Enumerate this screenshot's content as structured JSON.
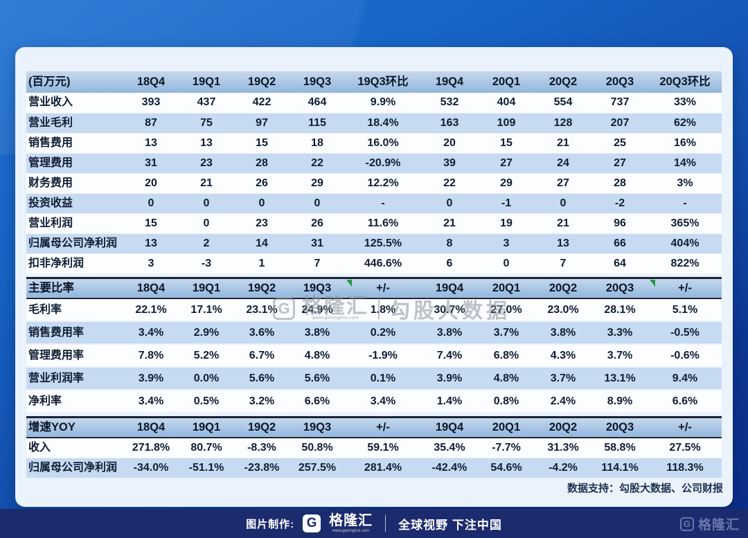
{
  "table": {
    "sections": [
      {
        "id": "income",
        "header": [
          "(百万元)",
          "18Q4",
          "19Q1",
          "19Q2",
          "19Q3",
          "19Q3环比",
          "19Q4",
          "20Q1",
          "20Q2",
          "20Q3",
          "20Q3环比"
        ],
        "marker_cols": [],
        "rows": [
          {
            "label": "营业收入",
            "values": [
              "393",
              "437",
              "422",
              "464",
              "9.9%",
              "532",
              "404",
              "554",
              "737",
              "33%"
            ]
          },
          {
            "label": "营业毛利",
            "values": [
              "87",
              "75",
              "97",
              "115",
              "18.4%",
              "163",
              "109",
              "128",
              "207",
              "62%"
            ]
          },
          {
            "label": "销售费用",
            "values": [
              "13",
              "13",
              "15",
              "18",
              "16.0%",
              "20",
              "15",
              "21",
              "25",
              "16%"
            ]
          },
          {
            "label": "管理费用",
            "values": [
              "31",
              "23",
              "28",
              "22",
              "-20.9%",
              "39",
              "27",
              "24",
              "27",
              "14%"
            ]
          },
          {
            "label": "财务费用",
            "values": [
              "20",
              "21",
              "26",
              "29",
              "12.2%",
              "22",
              "29",
              "27",
              "28",
              "3%"
            ]
          },
          {
            "label": "投资收益",
            "values": [
              "0",
              "0",
              "0",
              "0",
              "-",
              "0",
              "-1",
              "0",
              "-2",
              "-"
            ]
          },
          {
            "label": "营业利润",
            "values": [
              "15",
              "0",
              "23",
              "26",
              "11.6%",
              "21",
              "19",
              "21",
              "96",
              "365%"
            ]
          },
          {
            "label": "归属母公司净利润",
            "values": [
              "13",
              "2",
              "14",
              "31",
              "125.5%",
              "8",
              "3",
              "13",
              "66",
              "404%"
            ]
          },
          {
            "label": "扣非净利润",
            "values": [
              "3",
              "-3",
              "1",
              "7",
              "446.6%",
              "6",
              "0",
              "7",
              "64",
              "822%"
            ]
          }
        ]
      },
      {
        "id": "ratios",
        "header": [
          "主要比率",
          "18Q4",
          "19Q1",
          "19Q2",
          "19Q3",
          "+/-",
          "19Q4",
          "20Q1",
          "20Q2",
          "20Q3",
          "+/-"
        ],
        "marker_cols": [
          5,
          10
        ],
        "rows": [
          {
            "label": "毛利率",
            "values": [
              "22.1%",
              "17.1%",
              "23.1%",
              "24.9%",
              "1.8%",
              "30.7%",
              "27.0%",
              "23.0%",
              "28.1%",
              "5.1%"
            ]
          },
          {
            "label": "销售费用率",
            "values": [
              "3.4%",
              "2.9%",
              "3.6%",
              "3.8%",
              "0.2%",
              "3.8%",
              "3.7%",
              "3.8%",
              "3.3%",
              "-0.5%"
            ]
          },
          {
            "label": "管理费用率",
            "values": [
              "7.8%",
              "5.2%",
              "6.7%",
              "4.8%",
              "-1.9%",
              "7.4%",
              "6.8%",
              "4.3%",
              "3.7%",
              "-0.6%"
            ]
          },
          {
            "label": "营业利润率",
            "values": [
              "3.9%",
              "0.0%",
              "5.6%",
              "5.6%",
              "0.1%",
              "3.9%",
              "4.8%",
              "3.7%",
              "13.1%",
              "9.4%"
            ]
          },
          {
            "label": "净利率",
            "values": [
              "3.4%",
              "0.5%",
              "3.2%",
              "6.6%",
              "3.4%",
              "1.4%",
              "0.8%",
              "2.4%",
              "8.9%",
              "6.6%"
            ]
          }
        ]
      },
      {
        "id": "yoy",
        "header": [
          "增速YOY",
          "18Q4",
          "19Q1",
          "19Q2",
          "19Q3",
          "+/-",
          "19Q4",
          "20Q1",
          "20Q2",
          "20Q3",
          "+/-"
        ],
        "marker_cols": [],
        "rows": [
          {
            "label": "收入",
            "values": [
              "271.8%",
              "80.7%",
              "-8.3%",
              "50.8%",
              "59.1%",
              "35.4%",
              "-7.7%",
              "31.3%",
              "58.8%",
              "27.5%"
            ]
          },
          {
            "label": "归属母公司净利润",
            "values": [
              "-34.0%",
              "-51.1%",
              "-23.8%",
              "257.5%",
              "281.4%",
              "-42.4%",
              "54.6%",
              "-4.2%",
              "114.1%",
              "118.3%"
            ]
          }
        ]
      }
    ]
  },
  "footer_note": "数据支持：勾股大数据、公司财报",
  "watermark": {
    "logo_letter": "G",
    "brand": "格隆汇",
    "site": "www.gelonghui.com",
    "product": "勾股大数据"
  },
  "bottom_bar": {
    "label": "图片制作:",
    "logo_letter": "G",
    "brand": "格隆汇",
    "brand_site": "www.gelonghui.com",
    "slogan": "全球视野 下注中国"
  },
  "corner_watermark": {
    "logo_letter": "G",
    "brand": "格隆汇"
  },
  "colors": {
    "background_top": "#2173d4",
    "background_bottom": "#0b2d88",
    "bottom_bar": "#1c2b6e",
    "card": "#eaf2fb",
    "header_fill_top": "#c6d8ec",
    "header_fill_bottom": "#93b7de",
    "stripe_row": "#c6daf1",
    "white_row": "#fbfdff",
    "text": "#101d33",
    "section_border": "#1a2233",
    "comment_marker_green": "#1f9b3a"
  },
  "chart_data": {
    "type": "table",
    "title": "季度财务数据表 (百万元)",
    "columns": [
      "(百万元)",
      "18Q4",
      "19Q1",
      "19Q2",
      "19Q3",
      "19Q3环比",
      "19Q4",
      "20Q1",
      "20Q2",
      "20Q3",
      "20Q3环比"
    ],
    "sections": [
      {
        "name": "(百万元)",
        "rows": [
          [
            "营业收入",
            "393",
            "437",
            "422",
            "464",
            "9.9%",
            "532",
            "404",
            "554",
            "737",
            "33%"
          ],
          [
            "营业毛利",
            "87",
            "75",
            "97",
            "115",
            "18.4%",
            "163",
            "109",
            "128",
            "207",
            "62%"
          ],
          [
            "销售费用",
            "13",
            "13",
            "15",
            "18",
            "16.0%",
            "20",
            "15",
            "21",
            "25",
            "16%"
          ],
          [
            "管理费用",
            "31",
            "23",
            "28",
            "22",
            "-20.9%",
            "39",
            "27",
            "24",
            "27",
            "14%"
          ],
          [
            "财务费用",
            "20",
            "21",
            "26",
            "29",
            "12.2%",
            "22",
            "29",
            "27",
            "28",
            "3%"
          ],
          [
            "投资收益",
            "0",
            "0",
            "0",
            "0",
            "-",
            "0",
            "-1",
            "0",
            "-2",
            "-"
          ],
          [
            "营业利润",
            "15",
            "0",
            "23",
            "26",
            "11.6%",
            "21",
            "19",
            "21",
            "96",
            "365%"
          ],
          [
            "归属母公司净利润",
            "13",
            "2",
            "14",
            "31",
            "125.5%",
            "8",
            "3",
            "13",
            "66",
            "404%"
          ],
          [
            "扣非净利润",
            "3",
            "-3",
            "1",
            "7",
            "446.6%",
            "6",
            "0",
            "7",
            "64",
            "822%"
          ]
        ]
      },
      {
        "name": "主要比率",
        "columns": [
          "主要比率",
          "18Q4",
          "19Q1",
          "19Q2",
          "19Q3",
          "+/-",
          "19Q4",
          "20Q1",
          "20Q2",
          "20Q3",
          "+/-"
        ],
        "rows": [
          [
            "毛利率",
            "22.1%",
            "17.1%",
            "23.1%",
            "24.9%",
            "1.8%",
            "30.7%",
            "27.0%",
            "23.0%",
            "28.1%",
            "5.1%"
          ],
          [
            "销售费用率",
            "3.4%",
            "2.9%",
            "3.6%",
            "3.8%",
            "0.2%",
            "3.8%",
            "3.7%",
            "3.8%",
            "3.3%",
            "-0.5%"
          ],
          [
            "管理费用率",
            "7.8%",
            "5.2%",
            "6.7%",
            "4.8%",
            "-1.9%",
            "7.4%",
            "6.8%",
            "4.3%",
            "3.7%",
            "-0.6%"
          ],
          [
            "营业利润率",
            "3.9%",
            "0.0%",
            "5.6%",
            "5.6%",
            "0.1%",
            "3.9%",
            "4.8%",
            "3.7%",
            "13.1%",
            "9.4%"
          ],
          [
            "净利率",
            "3.4%",
            "0.5%",
            "3.2%",
            "6.6%",
            "3.4%",
            "1.4%",
            "0.8%",
            "2.4%",
            "8.9%",
            "6.6%"
          ]
        ]
      },
      {
        "name": "增速YOY",
        "columns": [
          "增速YOY",
          "18Q4",
          "19Q1",
          "19Q2",
          "19Q3",
          "+/-",
          "19Q4",
          "20Q1",
          "20Q2",
          "20Q3",
          "+/-"
        ],
        "rows": [
          [
            "收入",
            "271.8%",
            "80.7%",
            "-8.3%",
            "50.8%",
            "59.1%",
            "35.4%",
            "-7.7%",
            "31.3%",
            "58.8%",
            "27.5%"
          ],
          [
            "归属母公司净利润",
            "-34.0%",
            "-51.1%",
            "-23.8%",
            "257.5%",
            "281.4%",
            "-42.4%",
            "54.6%",
            "-4.2%",
            "114.1%",
            "118.3%"
          ]
        ]
      }
    ],
    "footnote": "数据支持：勾股大数据、公司财报"
  }
}
